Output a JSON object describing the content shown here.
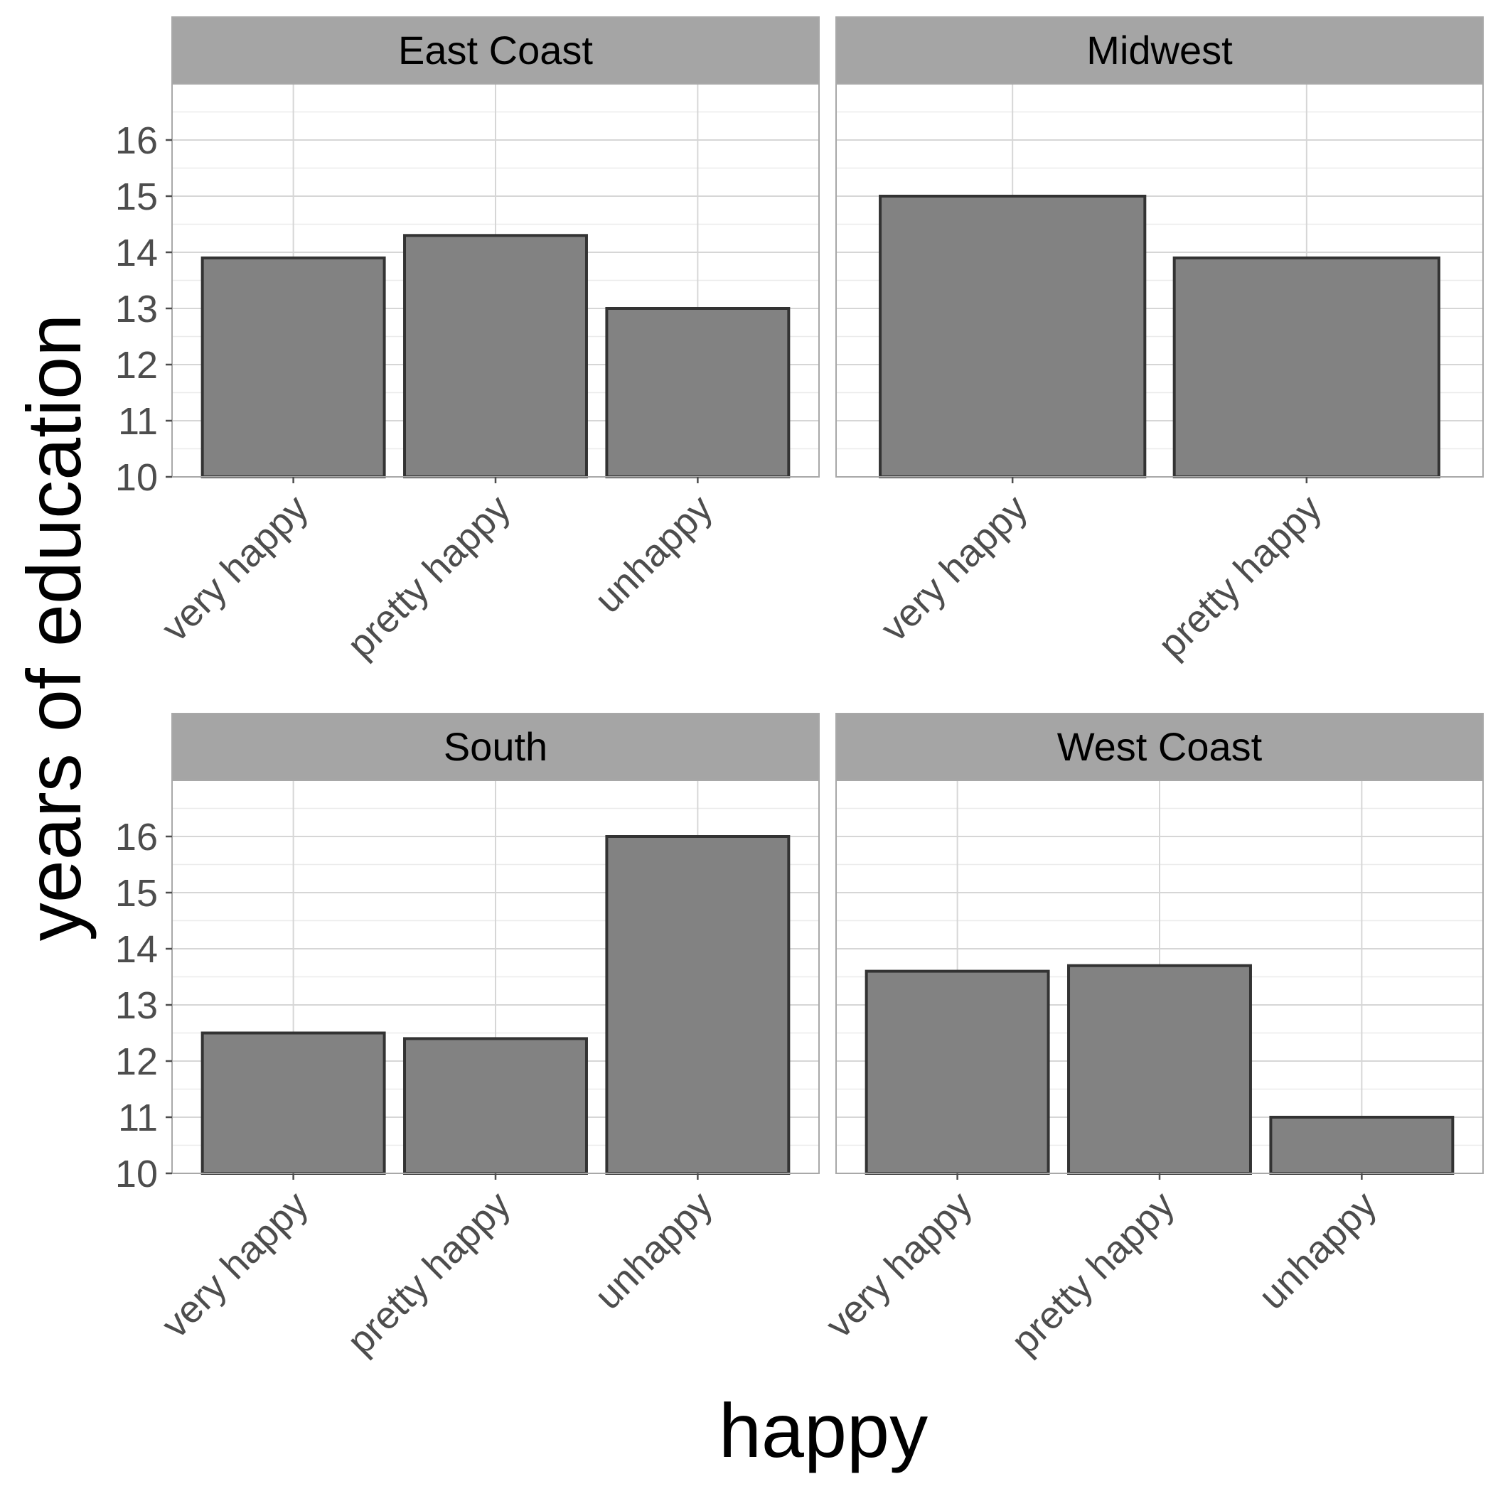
{
  "chart_data": {
    "type": "bar",
    "xlabel": "happy",
    "ylabel": "years of education",
    "ylim": [
      10,
      17
    ],
    "yticks": [
      10,
      11,
      12,
      13,
      14,
      15,
      16
    ],
    "grid": true,
    "colors": {
      "bar_fill": "#7f7f7f",
      "bar_stroke": "#333333",
      "strip_fill": "#a5a5a5",
      "grid_major": "#d6d6d6",
      "grid_minor": "#ebebeb",
      "panel_border": "#a8a8a8",
      "tick_text": "#4d4d4d",
      "title_text": "#000000"
    },
    "facets": [
      {
        "name": "East Coast",
        "categories": [
          "very happy",
          "pretty happy",
          "unhappy"
        ],
        "values": [
          13.9,
          14.3,
          13.0
        ]
      },
      {
        "name": "Midwest",
        "categories": [
          "very happy",
          "pretty happy"
        ],
        "values": [
          15.0,
          13.9
        ]
      },
      {
        "name": "South",
        "categories": [
          "very happy",
          "pretty happy",
          "unhappy"
        ],
        "values": [
          12.5,
          12.4,
          16.0
        ]
      },
      {
        "name": "West Coast",
        "categories": [
          "very happy",
          "pretty happy",
          "unhappy"
        ],
        "values": [
          13.6,
          13.7,
          11.0
        ]
      }
    ]
  }
}
